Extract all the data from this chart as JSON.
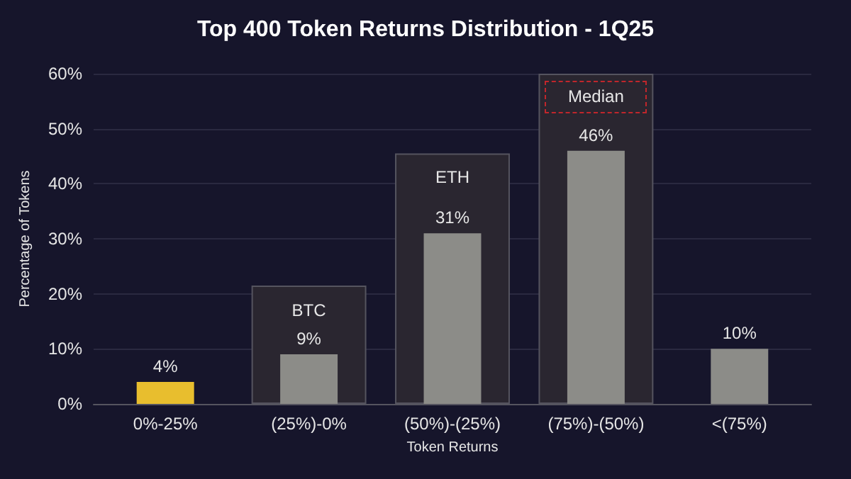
{
  "chart_data": {
    "type": "bar",
    "title": "Top 400 Token Returns Distribution - 1Q25",
    "xlabel": "Token Returns",
    "ylabel": "Percentage of Tokens",
    "categories": [
      "0%-25%",
      "(25%)-0%",
      "(50%)-(25%)",
      "(75%)-(50%)",
      "<(75%)"
    ],
    "series": [
      {
        "color": "#2a2630",
        "values": [
          null,
          21.5,
          45.5,
          60,
          null
        ]
      },
      {
        "colors": [
          "#e8be2e",
          "#8c8c88",
          "#8c8c88",
          "#8c8c88",
          "#8c8c88"
        ],
        "values": [
          4,
          9,
          31,
          46,
          10
        ],
        "value_labels": [
          "4%",
          "9%",
          "31%",
          "46%",
          "10%"
        ]
      }
    ],
    "ylim": [
      0,
      60
    ],
    "yticks": [
      {
        "value": 0,
        "label": "0%"
      },
      {
        "value": 10,
        "label": "10%"
      },
      {
        "value": 20,
        "label": "20%"
      },
      {
        "value": 30,
        "label": "30%"
      },
      {
        "value": 40,
        "label": "40%"
      },
      {
        "value": 50,
        "label": "50%"
      },
      {
        "value": 60,
        "label": "60%"
      }
    ],
    "grid": "y",
    "annotations": [
      "BTC",
      "ETH",
      "Median"
    ]
  }
}
